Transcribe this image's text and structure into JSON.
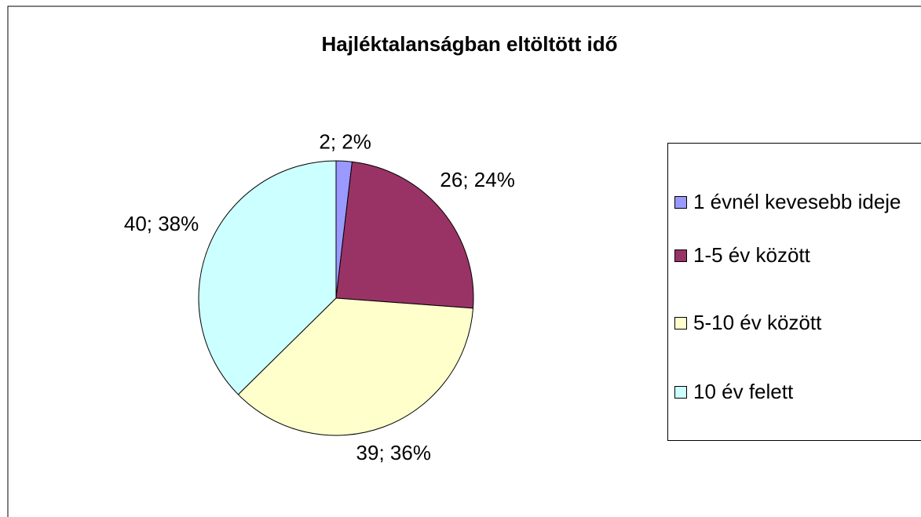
{
  "chart_data": {
    "type": "pie",
    "title": "Hajléktalanságban eltöltött idő",
    "categories": [
      "1 évnél kevesebb ideje",
      "1-5 év között",
      "5-10 év között",
      "10 év felett"
    ],
    "values": [
      2,
      26,
      39,
      40
    ],
    "value_labels": [
      "2; 2%",
      "26; 24%",
      "39; 36%",
      "40; 38%"
    ],
    "colors": [
      "#9999ff",
      "#993366",
      "#ffffcc",
      "#ccffff"
    ],
    "legend": "right"
  }
}
